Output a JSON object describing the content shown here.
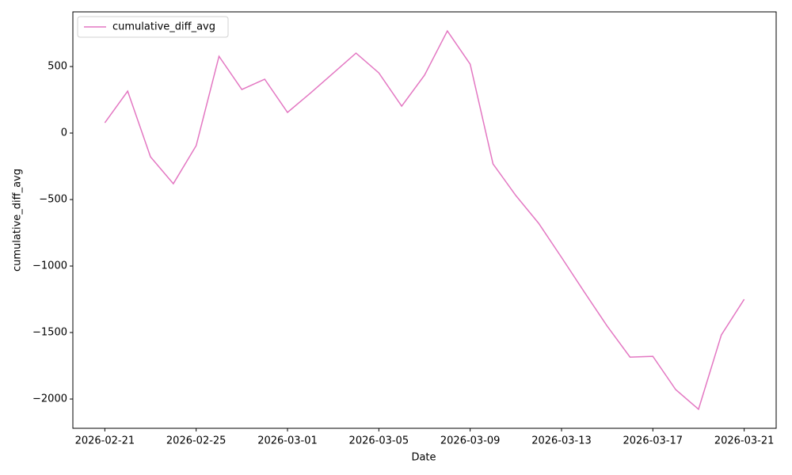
{
  "chart_data": {
    "type": "line",
    "x_label": "Date",
    "y_label": "cumulative_diff_avg",
    "x": [
      "2026-02-21",
      "2026-02-22",
      "2026-02-23",
      "2026-02-24",
      "2026-02-25",
      "2026-02-26",
      "2026-02-27",
      "2026-02-28",
      "2026-03-01",
      "2026-03-02",
      "2026-03-03",
      "2026-03-04",
      "2026-03-05",
      "2026-03-06",
      "2026-03-07",
      "2026-03-08",
      "2026-03-09",
      "2026-03-10",
      "2026-03-11",
      "2026-03-12",
      "2026-03-13",
      "2026-03-14",
      "2026-03-15",
      "2026-03-16",
      "2026-03-17",
      "2026-03-18",
      "2026-03-19",
      "2026-03-20",
      "2026-03-21"
    ],
    "series": [
      {
        "name": "cumulative_diff_avg",
        "color": "#e377c2",
        "values": [
          77,
          315,
          -179,
          -381,
          -95,
          577,
          327,
          405,
          155,
          300,
          450,
          601,
          452,
          202,
          435,
          768,
          518,
          -232,
          -470,
          -679,
          -935,
          -1196,
          -1452,
          -1685,
          -1679,
          -1929,
          -2077,
          -1518,
          -1250
        ]
      }
    ],
    "xticks": [
      "2026-02-21",
      "2026-02-25",
      "2026-03-01",
      "2026-03-05",
      "2026-03-09",
      "2026-03-13",
      "2026-03-17",
      "2026-03-21"
    ],
    "ylim": [
      -2220,
      911
    ],
    "yticks": [
      {
        "value": -2000,
        "label": "−2000"
      },
      {
        "value": -1500,
        "label": "−1500"
      },
      {
        "value": -1000,
        "label": "−1000"
      },
      {
        "value": -500,
        "label": "−500"
      },
      0,
      500
    ],
    "legend": "upper left"
  }
}
